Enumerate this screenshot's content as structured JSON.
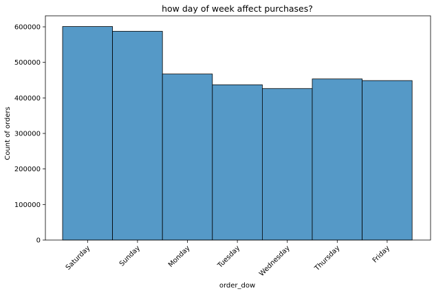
{
  "chart_data": {
    "type": "bar",
    "title": "how day of week affect purchases?",
    "xlabel": "order_dow",
    "ylabel": "Count of orders",
    "categories": [
      "Saturday",
      "Sunday",
      "Monday",
      "Tuesday",
      "Wednesday",
      "Thursday",
      "Friday"
    ],
    "values": [
      600905,
      587478,
      467260,
      436972,
      426339,
      453368,
      448761
    ],
    "yticks": [
      0,
      100000,
      200000,
      300000,
      400000,
      500000,
      600000
    ],
    "ylim": [
      0,
      631000
    ],
    "grid": false,
    "bar_color": "#5599c7",
    "edge_color": "#000000"
  }
}
